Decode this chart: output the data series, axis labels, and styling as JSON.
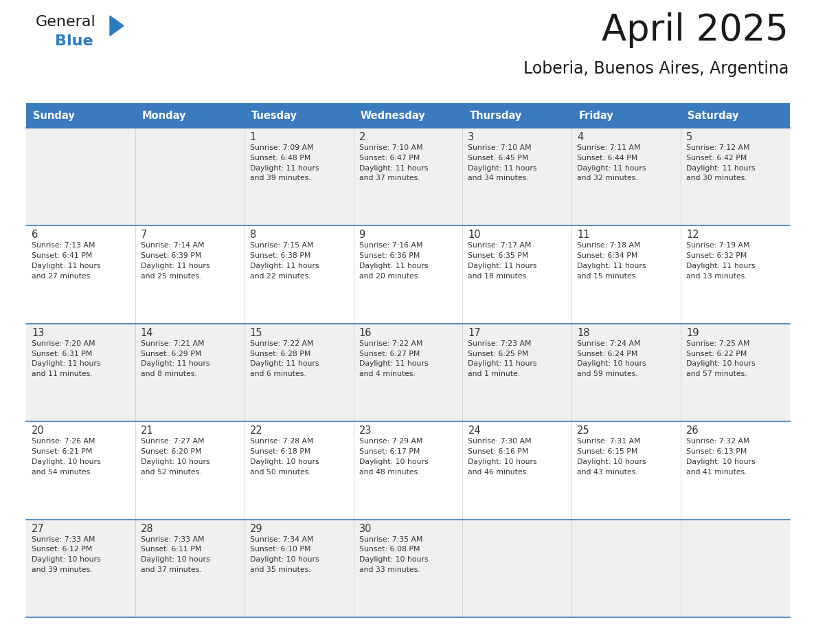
{
  "title": "April 2025",
  "subtitle": "Loberia, Buenos Aires, Argentina",
  "header_color": "#3a7abf",
  "header_text_color": "#ffffff",
  "cell_bg_even": "#f0f0f0",
  "cell_bg_odd": "#ffffff",
  "border_color": "#3a7abf",
  "text_color": "#333333",
  "days_of_week": [
    "Sunday",
    "Monday",
    "Tuesday",
    "Wednesday",
    "Thursday",
    "Friday",
    "Saturday"
  ],
  "weeks": [
    [
      {
        "day": "",
        "info": ""
      },
      {
        "day": "",
        "info": ""
      },
      {
        "day": "1",
        "info": "Sunrise: 7:09 AM\nSunset: 6:48 PM\nDaylight: 11 hours\nand 39 minutes."
      },
      {
        "day": "2",
        "info": "Sunrise: 7:10 AM\nSunset: 6:47 PM\nDaylight: 11 hours\nand 37 minutes."
      },
      {
        "day": "3",
        "info": "Sunrise: 7:10 AM\nSunset: 6:45 PM\nDaylight: 11 hours\nand 34 minutes."
      },
      {
        "day": "4",
        "info": "Sunrise: 7:11 AM\nSunset: 6:44 PM\nDaylight: 11 hours\nand 32 minutes."
      },
      {
        "day": "5",
        "info": "Sunrise: 7:12 AM\nSunset: 6:42 PM\nDaylight: 11 hours\nand 30 minutes."
      }
    ],
    [
      {
        "day": "6",
        "info": "Sunrise: 7:13 AM\nSunset: 6:41 PM\nDaylight: 11 hours\nand 27 minutes."
      },
      {
        "day": "7",
        "info": "Sunrise: 7:14 AM\nSunset: 6:39 PM\nDaylight: 11 hours\nand 25 minutes."
      },
      {
        "day": "8",
        "info": "Sunrise: 7:15 AM\nSunset: 6:38 PM\nDaylight: 11 hours\nand 22 minutes."
      },
      {
        "day": "9",
        "info": "Sunrise: 7:16 AM\nSunset: 6:36 PM\nDaylight: 11 hours\nand 20 minutes."
      },
      {
        "day": "10",
        "info": "Sunrise: 7:17 AM\nSunset: 6:35 PM\nDaylight: 11 hours\nand 18 minutes."
      },
      {
        "day": "11",
        "info": "Sunrise: 7:18 AM\nSunset: 6:34 PM\nDaylight: 11 hours\nand 15 minutes."
      },
      {
        "day": "12",
        "info": "Sunrise: 7:19 AM\nSunset: 6:32 PM\nDaylight: 11 hours\nand 13 minutes."
      }
    ],
    [
      {
        "day": "13",
        "info": "Sunrise: 7:20 AM\nSunset: 6:31 PM\nDaylight: 11 hours\nand 11 minutes."
      },
      {
        "day": "14",
        "info": "Sunrise: 7:21 AM\nSunset: 6:29 PM\nDaylight: 11 hours\nand 8 minutes."
      },
      {
        "day": "15",
        "info": "Sunrise: 7:22 AM\nSunset: 6:28 PM\nDaylight: 11 hours\nand 6 minutes."
      },
      {
        "day": "16",
        "info": "Sunrise: 7:22 AM\nSunset: 6:27 PM\nDaylight: 11 hours\nand 4 minutes."
      },
      {
        "day": "17",
        "info": "Sunrise: 7:23 AM\nSunset: 6:25 PM\nDaylight: 11 hours\nand 1 minute."
      },
      {
        "day": "18",
        "info": "Sunrise: 7:24 AM\nSunset: 6:24 PM\nDaylight: 10 hours\nand 59 minutes."
      },
      {
        "day": "19",
        "info": "Sunrise: 7:25 AM\nSunset: 6:22 PM\nDaylight: 10 hours\nand 57 minutes."
      }
    ],
    [
      {
        "day": "20",
        "info": "Sunrise: 7:26 AM\nSunset: 6:21 PM\nDaylight: 10 hours\nand 54 minutes."
      },
      {
        "day": "21",
        "info": "Sunrise: 7:27 AM\nSunset: 6:20 PM\nDaylight: 10 hours\nand 52 minutes."
      },
      {
        "day": "22",
        "info": "Sunrise: 7:28 AM\nSunset: 6:18 PM\nDaylight: 10 hours\nand 50 minutes."
      },
      {
        "day": "23",
        "info": "Sunrise: 7:29 AM\nSunset: 6:17 PM\nDaylight: 10 hours\nand 48 minutes."
      },
      {
        "day": "24",
        "info": "Sunrise: 7:30 AM\nSunset: 6:16 PM\nDaylight: 10 hours\nand 46 minutes."
      },
      {
        "day": "25",
        "info": "Sunrise: 7:31 AM\nSunset: 6:15 PM\nDaylight: 10 hours\nand 43 minutes."
      },
      {
        "day": "26",
        "info": "Sunrise: 7:32 AM\nSunset: 6:13 PM\nDaylight: 10 hours\nand 41 minutes."
      }
    ],
    [
      {
        "day": "27",
        "info": "Sunrise: 7:33 AM\nSunset: 6:12 PM\nDaylight: 10 hours\nand 39 minutes."
      },
      {
        "day": "28",
        "info": "Sunrise: 7:33 AM\nSunset: 6:11 PM\nDaylight: 10 hours\nand 37 minutes."
      },
      {
        "day": "29",
        "info": "Sunrise: 7:34 AM\nSunset: 6:10 PM\nDaylight: 10 hours\nand 35 minutes."
      },
      {
        "day": "30",
        "info": "Sunrise: 7:35 AM\nSunset: 6:08 PM\nDaylight: 10 hours\nand 33 minutes."
      },
      {
        "day": "",
        "info": ""
      },
      {
        "day": "",
        "info": ""
      },
      {
        "day": "",
        "info": ""
      }
    ]
  ]
}
